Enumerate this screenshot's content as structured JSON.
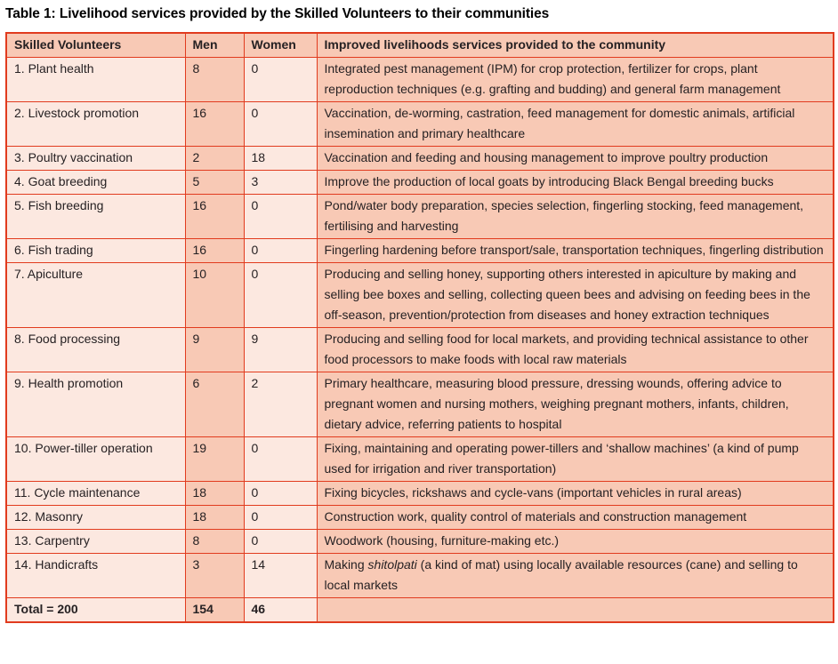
{
  "title": "Table 1: Livelihood services provided by the Skilled Volunteers to their communities",
  "colors": {
    "border": "#e13b1e",
    "header_bg": "#f8c9b5",
    "dark_cell_bg": "#f8c9b5",
    "light_cell_bg": "#fce8e0",
    "text": "#262123",
    "title": "#000000"
  },
  "table": {
    "columns": [
      {
        "label": "Skilled Volunteers"
      },
      {
        "label": "Men"
      },
      {
        "label": "Women"
      },
      {
        "label": "Improved livelihoods services provided to the community"
      }
    ],
    "rows": [
      {
        "name": "1. Plant health",
        "men": "8",
        "women": "0",
        "desc": [
          {
            "text": "Integrated pest management (IPM) for crop protection, fertilizer for crops, plant reproduction techniques (e.g. grafting and budding) and general farm management"
          }
        ]
      },
      {
        "name": "2. Livestock promotion",
        "men": "16",
        "women": "0",
        "desc": [
          {
            "text": "Vaccination, de-worming, castration, feed management for domestic animals, artificial insemination and primary healthcare"
          }
        ]
      },
      {
        "name": "3. Poultry vaccination",
        "men": "2",
        "women": "18",
        "desc": [
          {
            "text": "Vaccination and feeding and housing management to improve poultry production"
          }
        ]
      },
      {
        "name": "4. Goat breeding",
        "men": "5",
        "women": "3",
        "desc": [
          {
            "text": "Improve the production of local goats by introducing Black Bengal breeding bucks"
          }
        ]
      },
      {
        "name": "5. Fish breeding",
        "men": "16",
        "women": "0",
        "desc": [
          {
            "text": "Pond/water body preparation, species selection, fingerling stocking, feed management, fertilising and harvesting"
          }
        ]
      },
      {
        "name": "6. Fish trading",
        "men": "16",
        "women": "0",
        "desc": [
          {
            "text": "Fingerling hardening before transport/sale, transportation techniques, fingerling distribution"
          }
        ]
      },
      {
        "name": "7. Apiculture",
        "men": "10",
        "women": "0",
        "desc": [
          {
            "text": "Producing and selling honey, supporting others interested in apiculture by making and selling bee boxes and selling, collecting queen bees and advising on feeding bees in the off-season, prevention/protection from diseases and honey extraction techniques"
          }
        ]
      },
      {
        "name": "8. Food processing",
        "men": "9",
        "women": "9",
        "desc": [
          {
            "text": "Producing and selling food for local markets, and providing technical assistance to other food processors to make foods with local raw materials"
          }
        ]
      },
      {
        "name": "9. Health promotion",
        "men": "6",
        "women": "2",
        "desc": [
          {
            "text": "Primary healthcare, measuring blood pressure, dressing wounds, offering advice to pregnant women and nursing mothers, weighing pregnant mothers, infants, children, dietary advice, referring patients to hospital"
          }
        ]
      },
      {
        "name": "10. Power-tiller operation",
        "men": "19",
        "women": "0",
        "desc": [
          {
            "text": "Fixing, maintaining and operating power-tillers and ‘shallow machines’ (a kind of pump used for irrigation and river transportation)"
          }
        ]
      },
      {
        "name": "11. Cycle maintenance",
        "men": "18",
        "women": "0",
        "desc": [
          {
            "text": "Fixing bicycles, rickshaws and cycle-vans (important vehicles in rural areas)"
          }
        ]
      },
      {
        "name": "12. Masonry",
        "men": "18",
        "women": "0",
        "desc": [
          {
            "text": "Construction work, quality control of materials and construction management"
          }
        ]
      },
      {
        "name": "13. Carpentry",
        "men": "8",
        "women": "0",
        "desc": [
          {
            "text": "Woodwork (housing, furniture-making etc.)"
          }
        ]
      },
      {
        "name": "14. Handicrafts",
        "men": "3",
        "women": "14",
        "desc": [
          {
            "text": "Making "
          },
          {
            "text": "shitolpati",
            "italic": true
          },
          {
            "text": " (a kind of mat) using locally available resources (cane) and selling to local markets"
          }
        ]
      }
    ],
    "total_row": {
      "name": "Total = 200",
      "men": "154",
      "women": "46",
      "desc": ""
    }
  }
}
